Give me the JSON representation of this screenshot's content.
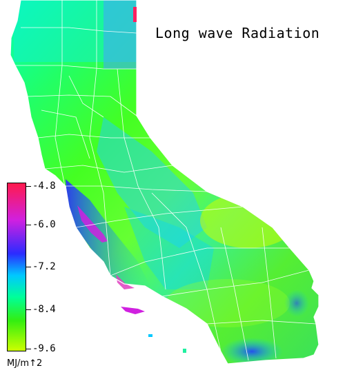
{
  "map": {
    "title": "Long wave Radiation",
    "region": "California",
    "variable": "long wave radiation",
    "palette": [
      "#ff1a4d",
      "#d020e0",
      "#2b2bff",
      "#00c8ff",
      "#00ff99",
      "#33ee11",
      "#ccff00"
    ]
  },
  "legend": {
    "ticks": [
      "-4.8",
      "-6.0",
      "-7.2",
      "-8.4",
      "-9.6"
    ],
    "units": "MJ/m↑2"
  }
}
